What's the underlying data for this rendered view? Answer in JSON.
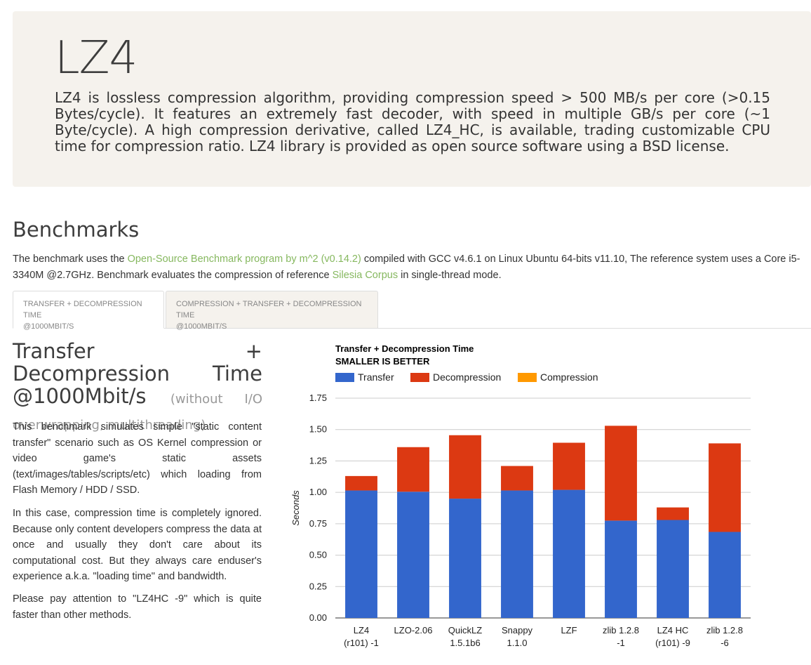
{
  "hero": {
    "title": "LZ4",
    "text": "LZ4 is lossless compression algorithm, providing compression speed > 500 MB/s per core (>0.15 Bytes/cycle). It features an extremely fast decoder, with speed in multiple GB/s per core (~1 Byte/cycle). A high compression derivative, called LZ4_HC, is available, trading customizable CPU time for compression ratio. LZ4 library is provided as open source software using a BSD license."
  },
  "benchmarks": {
    "title": "Benchmarks",
    "intro_1": "The benchmark uses the ",
    "link_1": "Open-Source Benchmark program by m^2 (v0.14.2)",
    "intro_2": " compiled with GCC v4.6.1 on Linux Ubuntu 64-bits v11.10, The reference system uses a Core i5-3340M @2.7GHz. Benchmark evaluates the compression of reference ",
    "link_2": "Silesia Corpus",
    "intro_3": " in single-thread mode."
  },
  "tabs": [
    {
      "line1": "TRANSFER + DECOMPRESSION TIME",
      "line2": "@1000MBIT/S"
    },
    {
      "line1": "COMPRESSION + TRANSFER + DECOMPRESSION TIME",
      "line2": "@1000MBIT/S"
    }
  ],
  "panel": {
    "title_main": "Transfer + Decompression Time @1000Mbit/s",
    "title_sub": "(without I/O overwrapping, multithreading)",
    "para_1": "This benchmark simulates simple \"static content transfer\" scenario such as OS Kernel compression or video game's static assets (text/images/tables/scripts/etc) which loading from Flash Memory / HDD / SSD.",
    "para_2": "In this case, compression time is completely ignored. Because only content developers compress the data at once and usually they don't care about its computational cost. But they always care enduser's experience a.k.a. \"loading time\" and bandwidth.",
    "para_3": "Please pay attention to \"LZ4HC -9\" which is quite faster than other methods."
  },
  "colors": {
    "link": "#86b85f",
    "transfer": "#3366cc",
    "decompression": "#dc3912",
    "compression": "#ff9900"
  },
  "chart_data": {
    "type": "bar",
    "stacked": true,
    "title": "Transfer + Decompression Time",
    "subtitle": "SMALLER IS BETTER",
    "xlabel": "",
    "ylabel": "Seconds",
    "ylim": [
      0,
      1.75
    ],
    "yticks": [
      "0.00",
      "0.25",
      "0.50",
      "0.75",
      "1.00",
      "1.25",
      "1.50",
      "1.75"
    ],
    "legend_position": "top",
    "categories": [
      [
        "LZ4",
        "(r101) -1"
      ],
      [
        "LZO-2.06"
      ],
      [
        "QuickLZ",
        "1.5.1b6"
      ],
      [
        "Snappy",
        "1.1.0"
      ],
      [
        "LZF"
      ],
      [
        "zlib 1.2.8",
        "-1"
      ],
      [
        "LZ4 HC",
        "(r101) -9"
      ],
      [
        "zlib 1.2.8",
        "-6"
      ]
    ],
    "series": [
      {
        "name": "Transfer",
        "color": "#3366cc",
        "values": [
          1.015,
          1.005,
          0.95,
          1.015,
          1.02,
          0.775,
          0.78,
          0.685
        ]
      },
      {
        "name": "Decompression",
        "color": "#dc3912",
        "values": [
          0.115,
          0.355,
          0.505,
          0.195,
          0.375,
          0.755,
          0.1,
          0.705
        ]
      },
      {
        "name": "Compression",
        "color": "#ff9900",
        "values": [
          0,
          0,
          0,
          0,
          0,
          0,
          0,
          0
        ]
      }
    ]
  }
}
